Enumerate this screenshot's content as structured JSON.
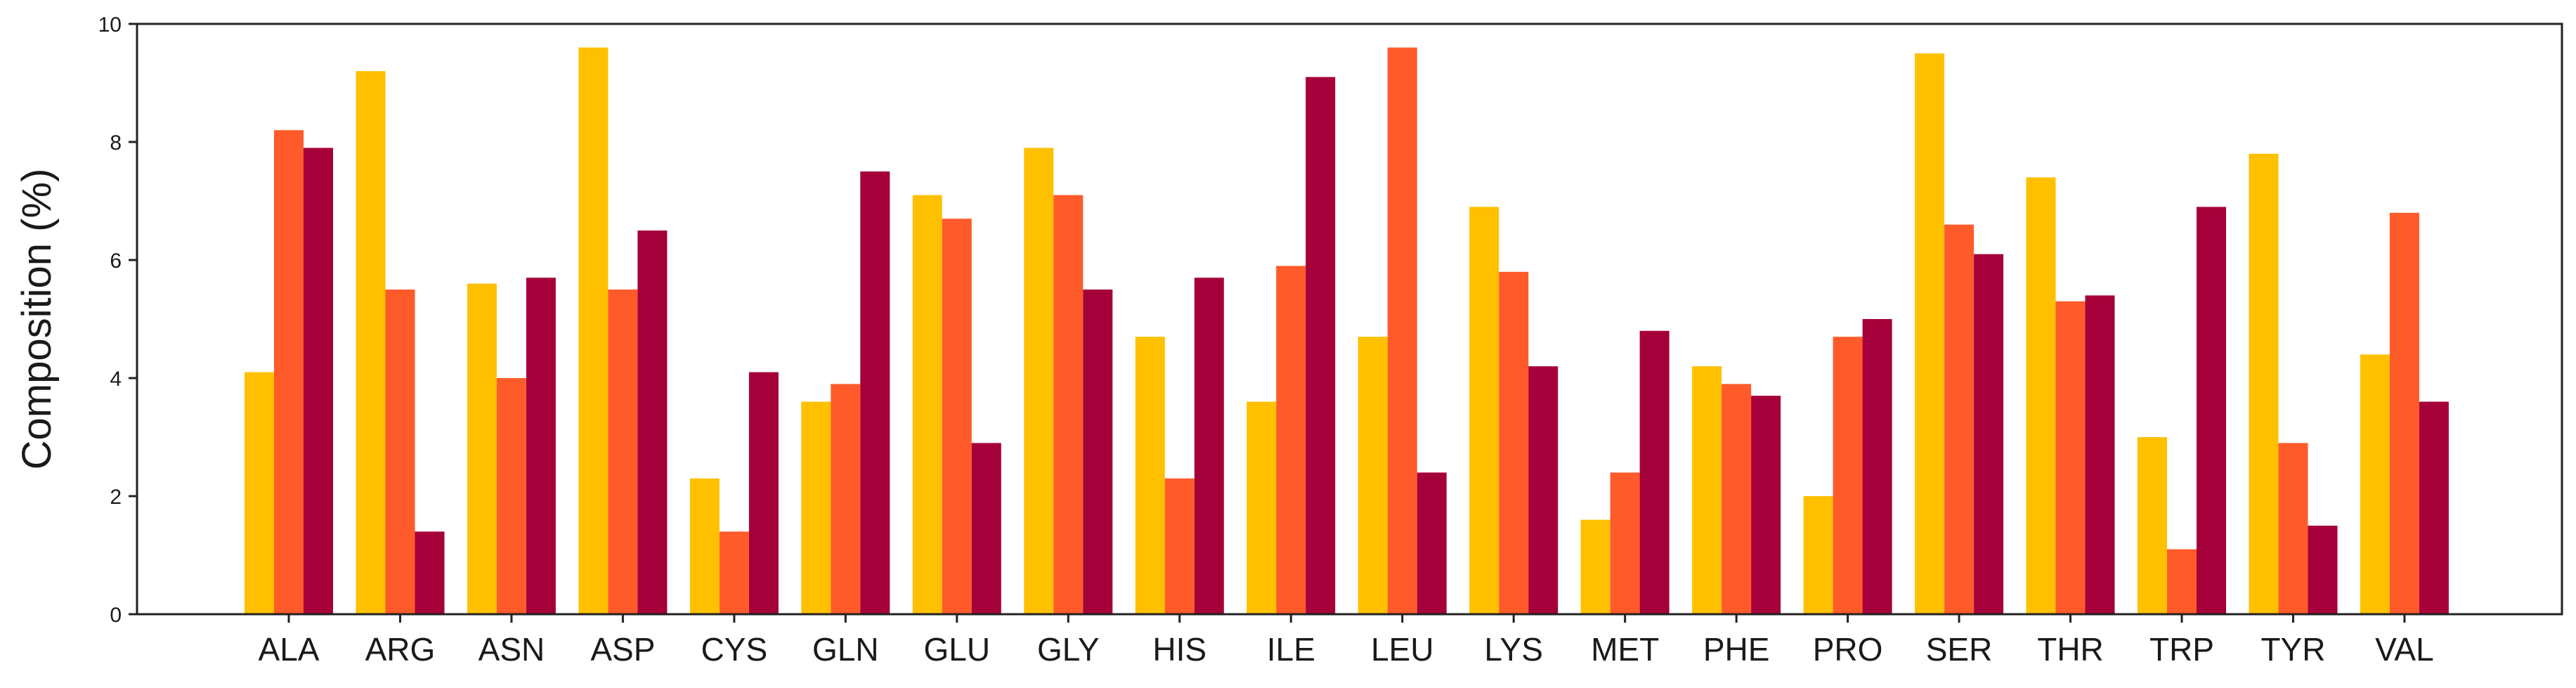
{
  "chart_data": {
    "type": "bar",
    "ylabel": "Composition (%)",
    "xlabel": "",
    "ylim": [
      0,
      10
    ],
    "yticks": [
      0,
      2,
      4,
      6,
      8,
      10
    ],
    "grid": false,
    "legend": "none",
    "categories": [
      "ALA",
      "ARG",
      "ASN",
      "ASP",
      "CYS",
      "GLN",
      "GLU",
      "GLY",
      "HIS",
      "ILE",
      "LEU",
      "LYS",
      "MET",
      "PHE",
      "PRO",
      "SER",
      "THR",
      "TRP",
      "TYR",
      "VAL"
    ],
    "series": [
      {
        "color": "#FFC000",
        "values": [
          4.1,
          9.2,
          5.6,
          9.6,
          2.3,
          3.6,
          7.1,
          7.9,
          4.7,
          3.6,
          4.7,
          6.9,
          1.6,
          4.2,
          2.0,
          9.5,
          7.4,
          3.0,
          7.8,
          4.4
        ]
      },
      {
        "color": "#FF5A2A",
        "values": [
          8.2,
          5.5,
          4.0,
          5.5,
          1.4,
          3.9,
          6.7,
          7.1,
          2.3,
          5.9,
          9.6,
          5.8,
          2.4,
          3.9,
          4.7,
          6.6,
          5.3,
          1.1,
          2.9,
          6.8
        ]
      },
      {
        "color": "#A5003A",
        "values": [
          7.9,
          1.4,
          5.7,
          6.5,
          4.1,
          7.5,
          2.9,
          5.5,
          5.7,
          9.1,
          2.4,
          4.2,
          4.8,
          3.7,
          5.0,
          6.1,
          5.4,
          6.9,
          1.5,
          3.6
        ]
      }
    ]
  }
}
